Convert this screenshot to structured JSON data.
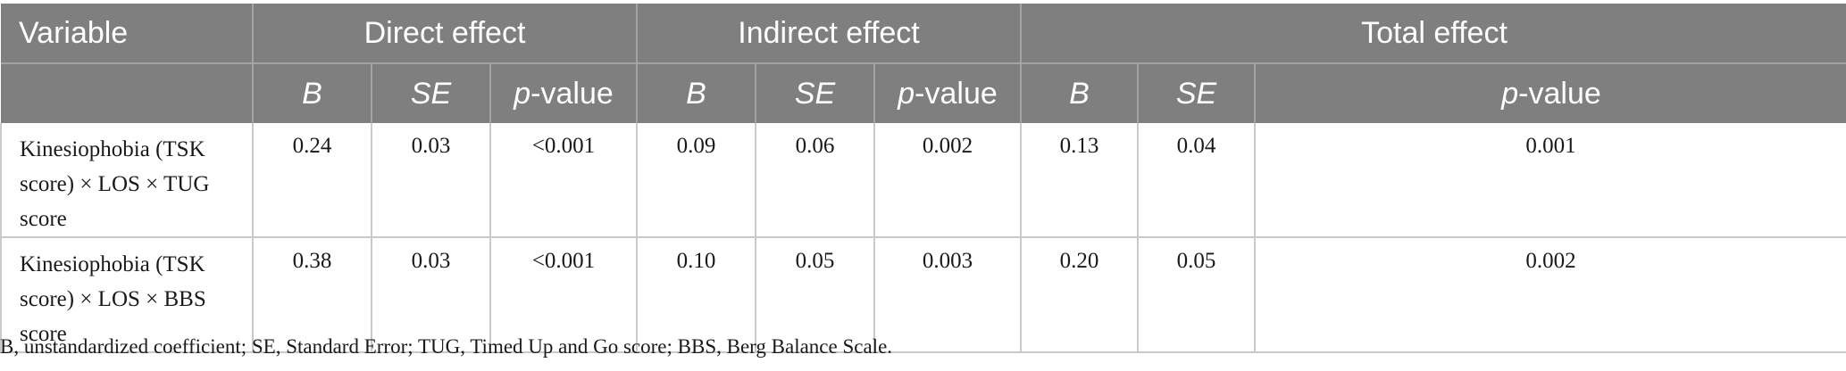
{
  "table": {
    "header_groups": {
      "variable": "Variable",
      "direct": "Direct effect",
      "indirect": "Indirect effect",
      "total": "Total effect"
    },
    "subheaders": {
      "b": "B",
      "se": "SE",
      "p_italic": "p",
      "p_suffix": "-value"
    },
    "rows": [
      {
        "variable_line1": "Kinesiophobia (TSK",
        "variable_line2": "score) × LOS × TUG score",
        "direct": {
          "b": "0.24",
          "se": "0.03",
          "p": "<0.001"
        },
        "indirect": {
          "b": "0.09",
          "se": "0.06",
          "p": "0.002"
        },
        "total": {
          "b": "0.13",
          "se": "0.04",
          "p": "0.001"
        }
      },
      {
        "variable_line1": "Kinesiophobia (TSK",
        "variable_line2": "score) × LOS × BBS score",
        "direct": {
          "b": "0.38",
          "se": "0.03",
          "p": "<0.001"
        },
        "indirect": {
          "b": "0.10",
          "se": "0.05",
          "p": "0.003"
        },
        "total": {
          "b": "0.20",
          "se": "0.05",
          "p": "0.002"
        }
      }
    ]
  },
  "footnote": "B, unstandardized coefficient; SE, Standard Error; TUG, Timed Up and Go score; BBS, Berg Balance Scale."
}
